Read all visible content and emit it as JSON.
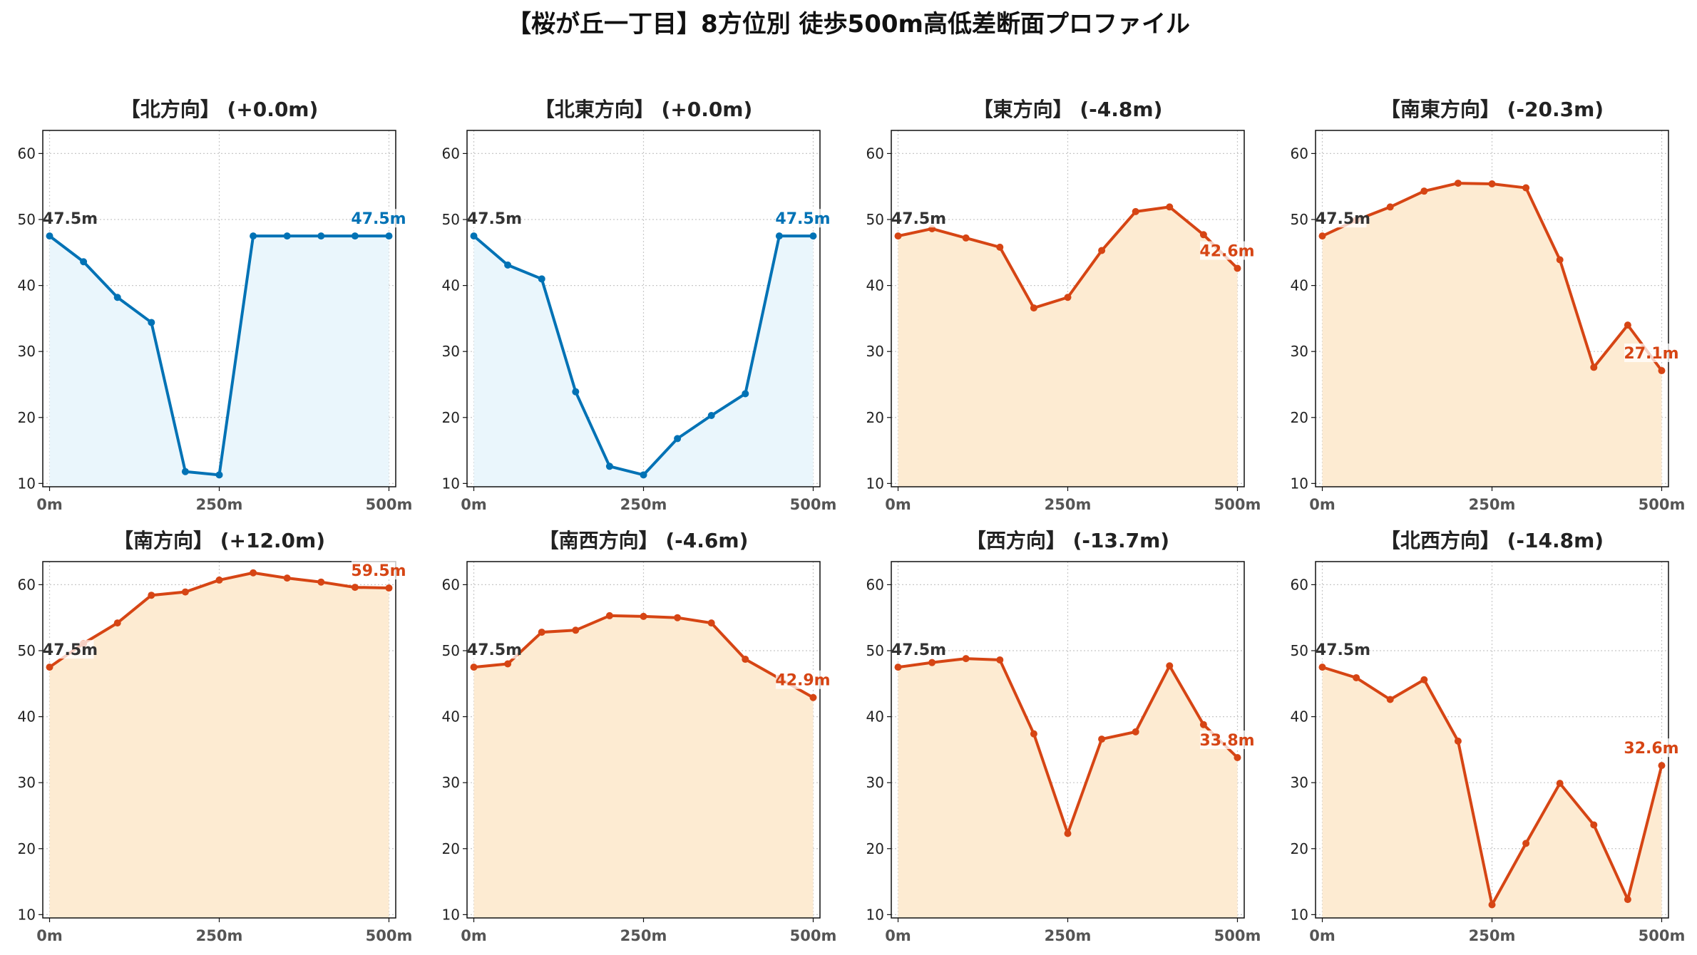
{
  "title": "【桜が丘一丁目】8方位別 徒歩500m高低差断面プロファイル",
  "colors": {
    "flat": "#0072b5",
    "flat_fill": "#eaf6fc",
    "change": "#d64514",
    "change_fill": "#fdebd2",
    "start_label": "#333333"
  },
  "chart_data": [
    {
      "type": "area",
      "title": "【北方向】 (+0.0m)",
      "style": "flat",
      "x": [
        0,
        50,
        100,
        150,
        200,
        250,
        300,
        350,
        400,
        450,
        500
      ],
      "values": [
        47.5,
        43.6,
        38.2,
        34.4,
        11.8,
        11.3,
        47.5,
        47.5,
        47.5,
        47.5,
        47.5
      ],
      "xtick_labels": [
        "0m",
        "250m",
        "500m"
      ],
      "yticks": [
        10,
        20,
        30,
        40,
        50,
        60
      ],
      "ylim": [
        9.5,
        63.5
      ],
      "xlim": [
        -10,
        510
      ],
      "start_label": "47.5m",
      "end_label": "47.5m",
      "grid": true
    },
    {
      "type": "area",
      "title": "【北東方向】 (+0.0m)",
      "style": "flat",
      "x": [
        0,
        50,
        100,
        150,
        200,
        250,
        300,
        350,
        400,
        450,
        500
      ],
      "values": [
        47.5,
        43.1,
        41.0,
        23.9,
        12.6,
        11.3,
        16.8,
        20.3,
        23.6,
        47.5,
        47.5
      ],
      "xtick_labels": [
        "0m",
        "250m",
        "500m"
      ],
      "yticks": [
        10,
        20,
        30,
        40,
        50,
        60
      ],
      "ylim": [
        9.5,
        63.5
      ],
      "xlim": [
        -10,
        510
      ],
      "start_label": "47.5m",
      "end_label": "47.5m",
      "grid": true
    },
    {
      "type": "area",
      "title": "【東方向】 (-4.8m)",
      "style": "change",
      "x": [
        0,
        50,
        100,
        150,
        200,
        250,
        300,
        350,
        400,
        450,
        500
      ],
      "values": [
        47.5,
        48.6,
        47.2,
        45.8,
        36.6,
        38.2,
        45.3,
        51.2,
        51.9,
        47.7,
        42.6
      ],
      "xtick_labels": [
        "0m",
        "250m",
        "500m"
      ],
      "yticks": [
        10,
        20,
        30,
        40,
        50,
        60
      ],
      "ylim": [
        9.5,
        63.5
      ],
      "xlim": [
        -10,
        510
      ],
      "start_label": "47.5m",
      "end_label": "42.6m",
      "grid": true
    },
    {
      "type": "area",
      "title": "【南東方向】 (-20.3m)",
      "style": "change",
      "x": [
        0,
        50,
        100,
        150,
        200,
        250,
        300,
        350,
        400,
        450,
        500
      ],
      "values": [
        47.5,
        49.9,
        51.9,
        54.3,
        55.5,
        55.4,
        54.8,
        43.9,
        27.6,
        34.0,
        27.1
      ],
      "xtick_labels": [
        "0m",
        "250m",
        "500m"
      ],
      "yticks": [
        10,
        20,
        30,
        40,
        50,
        60
      ],
      "ylim": [
        9.5,
        63.5
      ],
      "xlim": [
        -10,
        510
      ],
      "start_label": "47.5m",
      "end_label": "27.1m",
      "grid": true
    },
    {
      "type": "area",
      "title": "【南方向】 (+12.0m)",
      "style": "change",
      "x": [
        0,
        50,
        100,
        150,
        200,
        250,
        300,
        350,
        400,
        450,
        500
      ],
      "values": [
        47.5,
        51.1,
        54.2,
        58.4,
        58.9,
        60.7,
        61.8,
        61.0,
        60.4,
        59.6,
        59.5
      ],
      "xtick_labels": [
        "0m",
        "250m",
        "500m"
      ],
      "yticks": [
        10,
        20,
        30,
        40,
        50,
        60
      ],
      "ylim": [
        9.5,
        63.5
      ],
      "xlim": [
        -10,
        510
      ],
      "start_label": "47.5m",
      "end_label": "59.5m",
      "grid": true
    },
    {
      "type": "area",
      "title": "【南西方向】 (-4.6m)",
      "style": "change",
      "x": [
        0,
        50,
        100,
        150,
        200,
        250,
        300,
        350,
        400,
        450,
        500
      ],
      "values": [
        47.5,
        48.0,
        52.8,
        53.1,
        55.3,
        55.2,
        55.0,
        54.2,
        48.7,
        45.8,
        42.9
      ],
      "xtick_labels": [
        "0m",
        "250m",
        "500m"
      ],
      "yticks": [
        10,
        20,
        30,
        40,
        50,
        60
      ],
      "ylim": [
        9.5,
        63.5
      ],
      "xlim": [
        -10,
        510
      ],
      "start_label": "47.5m",
      "end_label": "42.9m",
      "grid": true
    },
    {
      "type": "area",
      "title": "【西方向】 (-13.7m)",
      "style": "change",
      "x": [
        0,
        50,
        100,
        150,
        200,
        250,
        300,
        350,
        400,
        450,
        500
      ],
      "values": [
        47.5,
        48.2,
        48.8,
        48.6,
        37.4,
        22.3,
        36.6,
        37.7,
        47.7,
        38.8,
        33.8
      ],
      "xtick_labels": [
        "0m",
        "250m",
        "500m"
      ],
      "yticks": [
        10,
        20,
        30,
        40,
        50,
        60
      ],
      "ylim": [
        9.5,
        63.5
      ],
      "xlim": [
        -10,
        510
      ],
      "start_label": "47.5m",
      "end_label": "33.8m",
      "grid": true
    },
    {
      "type": "area",
      "title": "【北西方向】 (-14.8m)",
      "style": "change",
      "x": [
        0,
        50,
        100,
        150,
        200,
        250,
        300,
        350,
        400,
        450,
        500
      ],
      "values": [
        47.5,
        45.9,
        42.6,
        45.6,
        36.3,
        11.5,
        20.8,
        29.9,
        23.6,
        12.3,
        32.6
      ],
      "xtick_labels": [
        "0m",
        "250m",
        "500m"
      ],
      "yticks": [
        10,
        20,
        30,
        40,
        50,
        60
      ],
      "ylim": [
        9.5,
        63.5
      ],
      "xlim": [
        -10,
        510
      ],
      "start_label": "47.5m",
      "end_label": "32.6m",
      "grid": true
    }
  ]
}
